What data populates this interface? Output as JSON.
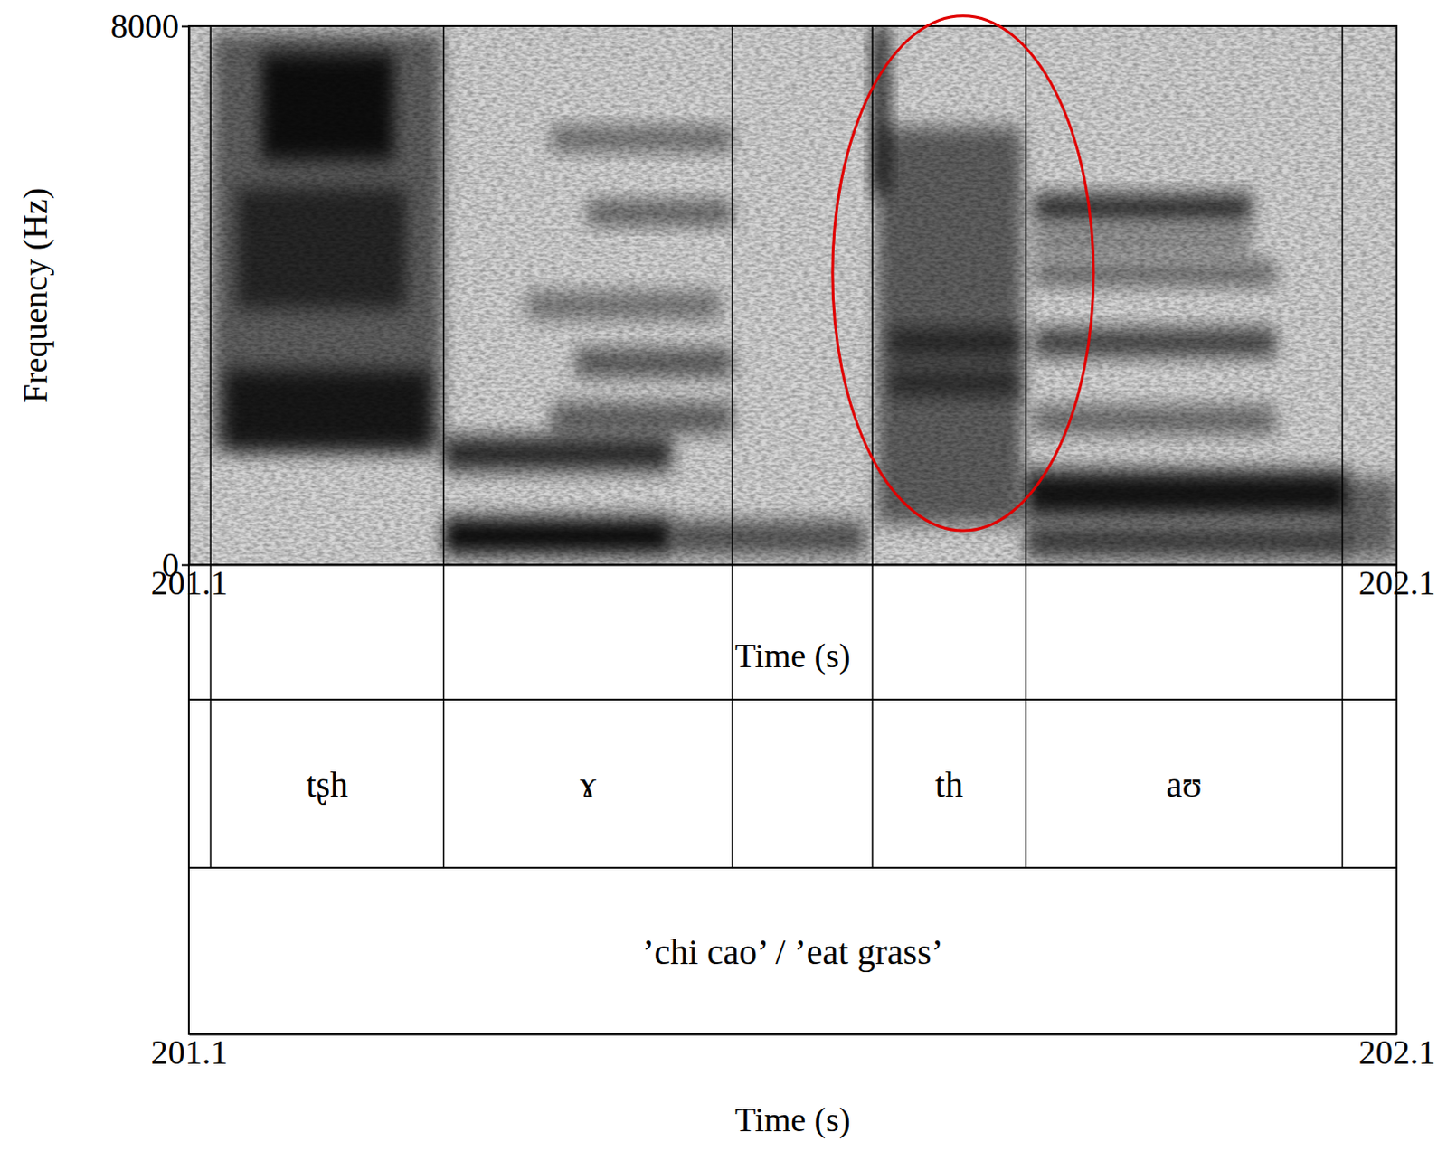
{
  "chart_data": {
    "type": "spectrogram",
    "xlabel": "Time (s)",
    "ylabel": "Frequency (Hz)",
    "xlim": [
      201.1,
      202.1
    ],
    "xticks": [
      201.1,
      202.1
    ],
    "ylim": [
      0,
      8000
    ],
    "yticks": [
      0,
      8000
    ],
    "bands": [
      {
        "x": [
          201.12,
          201.31
        ],
        "y": [
          1700,
          7900
        ],
        "intensity": 0.55
      },
      {
        "x": [
          201.16,
          201.27
        ],
        "y": [
          6000,
          7600
        ],
        "intensity": 0.85
      },
      {
        "x": [
          201.13,
          201.3
        ],
        "y": [
          1700,
          2900
        ],
        "intensity": 0.75
      },
      {
        "x": [
          201.14,
          201.28
        ],
        "y": [
          3800,
          5600
        ],
        "intensity": 0.6
      },
      {
        "x": [
          201.311,
          201.5
        ],
        "y": [
          150,
          700
        ],
        "intensity": 0.95
      },
      {
        "x": [
          201.5,
          201.66
        ],
        "y": [
          150,
          650
        ],
        "intensity": 0.6
      },
      {
        "x": [
          201.311,
          201.5
        ],
        "y": [
          1400,
          1900
        ],
        "intensity": 0.8
      },
      {
        "x": [
          201.4,
          201.55
        ],
        "y": [
          1950,
          2400
        ],
        "intensity": 0.55
      },
      {
        "x": [
          201.42,
          201.55
        ],
        "y": [
          2800,
          3200
        ],
        "intensity": 0.6
      },
      {
        "x": [
          201.38,
          201.54
        ],
        "y": [
          3650,
          4050
        ],
        "intensity": 0.45
      },
      {
        "x": [
          201.43,
          201.55
        ],
        "y": [
          5050,
          5400
        ],
        "intensity": 0.55
      },
      {
        "x": [
          201.4,
          201.55
        ],
        "y": [
          6150,
          6500
        ],
        "intensity": 0.5
      },
      {
        "x": [
          201.666,
          201.68
        ],
        "y": [
          5500,
          8000
        ],
        "intensity": 0.8
      },
      {
        "x": [
          201.67,
          201.79
        ],
        "y": [
          600,
          6500
        ],
        "intensity": 0.55
      },
      {
        "x": [
          201.68,
          201.79
        ],
        "y": [
          3100,
          3500
        ],
        "intensity": 0.6
      },
      {
        "x": [
          201.68,
          201.79
        ],
        "y": [
          2500,
          2900
        ],
        "intensity": 0.55
      },
      {
        "x": [
          201.793,
          202.06
        ],
        "y": [
          700,
          1400
        ],
        "intensity": 0.9
      },
      {
        "x": [
          201.793,
          202.06
        ],
        "y": [
          100,
          600
        ],
        "intensity": 0.7
      },
      {
        "x": [
          201.8,
          202.0
        ],
        "y": [
          1950,
          2350
        ],
        "intensity": 0.5
      },
      {
        "x": [
          201.8,
          202.0
        ],
        "y": [
          3100,
          3500
        ],
        "intensity": 0.7
      },
      {
        "x": [
          201.8,
          202.0
        ],
        "y": [
          4150,
          4500
        ],
        "intensity": 0.5
      },
      {
        "x": [
          201.8,
          201.98
        ],
        "y": [
          4650,
          4950
        ],
        "intensity": 0.45
      },
      {
        "x": [
          201.8,
          201.98
        ],
        "y": [
          5100,
          5500
        ],
        "intensity": 0.8
      },
      {
        "x": [
          202.055,
          202.1
        ],
        "y": [
          100,
          1300
        ],
        "intensity": 0.5
      }
    ],
    "highlight": {
      "x": [
        201.633,
        201.849
      ],
      "y": [
        507,
        8150
      ],
      "color": "#e00000"
    },
    "boundaries": [
      201.118,
      201.311,
      201.55,
      201.666,
      201.793,
      202.055
    ],
    "tiers": [
      {
        "intervals": [
          {
            "x": [
              201.118,
              201.311
            ],
            "label": "tʂh"
          },
          {
            "x": [
              201.311,
              201.55
            ],
            "label": "ɤ"
          },
          {
            "x": [
              201.666,
              201.793
            ],
            "label": "th"
          },
          {
            "x": [
              201.793,
              202.055
            ],
            "label": "aʊ"
          }
        ]
      },
      {
        "intervals": [
          {
            "x": [
              201.1,
              202.1
            ],
            "label": "’chi cao’ / ’eat grass’"
          }
        ]
      }
    ]
  }
}
